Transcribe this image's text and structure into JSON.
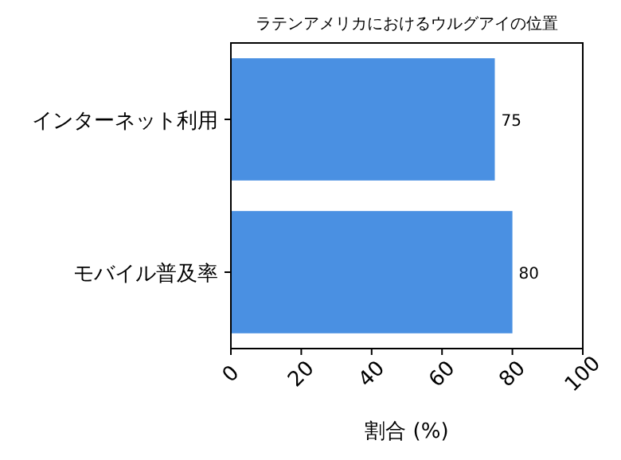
{
  "chart_data": {
    "type": "bar",
    "orientation": "horizontal",
    "title": "ラテンアメリカにおけるウルグアイの位置",
    "xlabel": "割合 (%)",
    "categories": [
      "インターネット利用",
      "モバイル普及率"
    ],
    "values": [
      75,
      80
    ],
    "color": "#4a90e2",
    "xlim": [
      0,
      100
    ],
    "xticks": [
      0,
      20,
      40,
      60,
      80,
      100
    ],
    "data_labels": true,
    "grid": false
  }
}
